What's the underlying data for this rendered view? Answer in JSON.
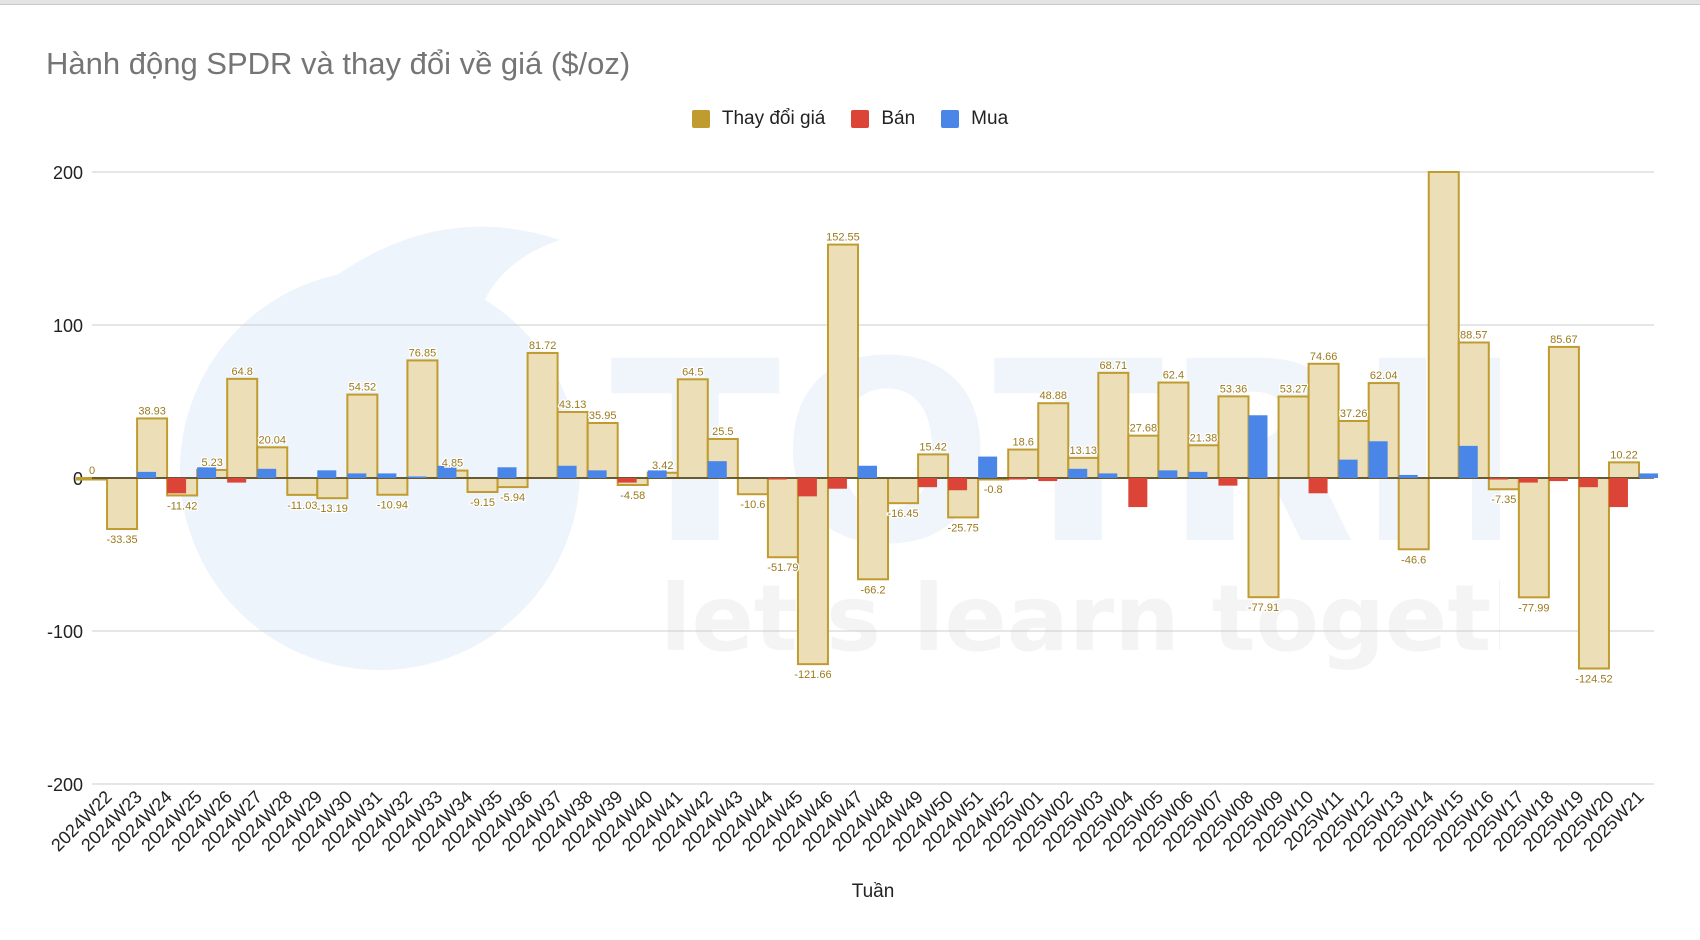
{
  "chart_data": {
    "type": "bar",
    "title": "Hành động SPDR và thay đổi về giá ($/oz)",
    "xlabel": "Tuần",
    "ylabel": "",
    "ylim": [
      -200,
      200
    ],
    "yticks": [
      "200",
      "100",
      "0",
      "-100",
      "-200"
    ],
    "grid": true,
    "legend_position": "top",
    "categories": [
      "2024W22",
      "2024W23",
      "2024W24",
      "2024W25",
      "2024W26",
      "2024W27",
      "2024W28",
      "2024W29",
      "2024W30",
      "2024W31",
      "2024W32",
      "2024W33",
      "2024W34",
      "2024W35",
      "2024W36",
      "2024W37",
      "2024W38",
      "2024W39",
      "2024W40",
      "2024W41",
      "2024W42",
      "2024W43",
      "2024W44",
      "2024W45",
      "2024W46",
      "2024W47",
      "2024W48",
      "2024W49",
      "2024W50",
      "2024W51",
      "2024W52",
      "2025W01",
      "2025W02",
      "2025W03",
      "2025W04",
      "2025W05",
      "2025W06",
      "2025W07",
      "2025W08",
      "2025W09",
      "2025W10",
      "2025W11",
      "2025W12",
      "2025W13",
      "2025W14",
      "2025W15",
      "2025W16",
      "2025W17",
      "2025W18",
      "2025W19",
      "2025W20",
      "2025W21"
    ],
    "series": [
      {
        "name": "Thay đổi giá",
        "color": "#bf9b30",
        "fill": "#ecdfb8",
        "values": [
          0,
          -33.35,
          38.93,
          -11.42,
          5.23,
          64.8,
          20.04,
          -11.03,
          -13.19,
          54.52,
          -10.94,
          76.85,
          4.85,
          -9.15,
          -5.94,
          81.72,
          43.13,
          35.95,
          -4.58,
          3.42,
          64.5,
          25.5,
          -10.6,
          -51.79,
          -121.66,
          152.55,
          -66.2,
          -16.45,
          15.42,
          -25.75,
          -0.8,
          18.6,
          48.88,
          13.13,
          68.71,
          27.68,
          62.4,
          21.38,
          53.36,
          -77.91,
          53.27,
          74.66,
          37.26,
          62.04,
          -46.6,
          200,
          88.57,
          -7.35,
          -77.99,
          85.67,
          -124.52,
          10.22
        ],
        "labels": [
          "0",
          "-33.35",
          "38.93",
          "-11.42",
          "5.23",
          "64.8",
          "20.04",
          "-11.03",
          "-13.19",
          "54.52",
          "-10.94",
          "76.85",
          "4.85",
          "-9.15",
          "-5.94",
          "81.72",
          "43.13",
          "35.95",
          "-4.58",
          "3.42",
          "64.5",
          "25.5",
          "-10.6",
          "-51.79",
          "-121.66",
          "152.55",
          "-66.2",
          "-16.45",
          "15.42",
          "-25.75",
          "-0.8",
          "18.6",
          "48.88",
          "13.13",
          "68.71",
          "27.68",
          "62.4",
          "21.38",
          "53.36",
          "-77.91",
          "53.27",
          "74.66",
          "37.26",
          "62.04",
          "-46.6",
          "",
          "88.57",
          "-7.35",
          "-77.99",
          "85.67",
          "-124.52",
          "10.22"
        ]
      },
      {
        "name": "Bán",
        "color": "#db4437",
        "values": [
          0,
          0,
          -10,
          0,
          -3,
          0,
          0,
          0,
          0,
          0,
          0,
          0,
          0,
          0,
          0,
          0,
          0,
          -3,
          0,
          0,
          0,
          0,
          -1,
          -12,
          -7,
          0,
          0,
          -6,
          -8,
          0,
          -1,
          -2,
          0,
          0,
          -19,
          0,
          0,
          -5,
          0,
          0,
          -10,
          0,
          0,
          0,
          0,
          0,
          -1,
          -3,
          -2,
          -6,
          -19,
          0
        ]
      },
      {
        "name": "Mua",
        "color": "#4a86e8",
        "values": [
          0,
          4,
          0,
          7,
          0,
          6,
          0,
          5,
          3,
          3,
          1,
          8,
          0,
          7,
          0,
          8,
          5,
          0,
          5,
          0,
          11,
          0,
          0,
          0,
          0,
          8,
          0,
          0,
          0,
          14,
          0,
          0,
          6,
          3,
          0,
          5,
          4,
          0,
          41,
          0,
          0,
          12,
          24,
          2,
          0,
          21,
          0,
          0,
          0,
          0,
          0,
          3
        ]
      }
    ]
  },
  "watermark": {
    "brand": "TOTRIEU",
    "tagline": "let's learn together"
  }
}
